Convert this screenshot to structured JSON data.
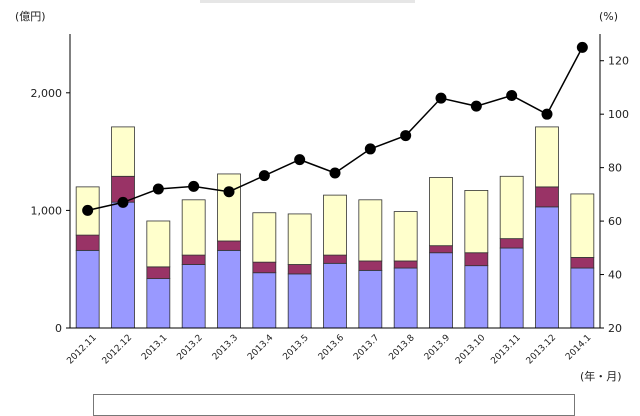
{
  "chart_data": {
    "type": "bar",
    "left_unit": "(億円)",
    "right_unit": "(%)",
    "x_unit": "(年・月)",
    "categories": [
      "2012.11",
      "2012.12",
      "2013.1",
      "2013.2",
      "2013.3",
      "2013.4",
      "2013.5",
      "2013.6",
      "2013.7",
      "2013.8",
      "2013.9",
      "2013.10",
      "2013.11",
      "2013.12",
      "2014.1"
    ],
    "y_left_ticks": [
      "0",
      "1,000",
      "2,000"
    ],
    "y_left_range": [
      0,
      2500
    ],
    "y_right_ticks": [
      "20",
      "40",
      "60",
      "80",
      "100",
      "120"
    ],
    "y_right_range": [
      20,
      130
    ],
    "series": [
      {
        "kind": "stacked-bar",
        "color": "#9999ff",
        "values": [
          660,
          1070,
          420,
          540,
          660,
          470,
          460,
          550,
          490,
          510,
          640,
          530,
          680,
          1030,
          510
        ]
      },
      {
        "kind": "stacked-bar",
        "color": "#993366",
        "values": [
          130,
          220,
          100,
          80,
          80,
          90,
          80,
          70,
          80,
          60,
          60,
          110,
          80,
          170,
          90
        ]
      },
      {
        "kind": "stacked-bar",
        "color": "#ffffcc",
        "values": [
          410,
          420,
          390,
          470,
          570,
          420,
          430,
          510,
          520,
          420,
          580,
          530,
          530,
          510,
          540
        ]
      },
      {
        "kind": "line",
        "axis": "right",
        "color": "#000000",
        "values": [
          64,
          67,
          72,
          73,
          71,
          77,
          83,
          78,
          87,
          92,
          106,
          103,
          107,
          100,
          125
        ]
      }
    ]
  }
}
